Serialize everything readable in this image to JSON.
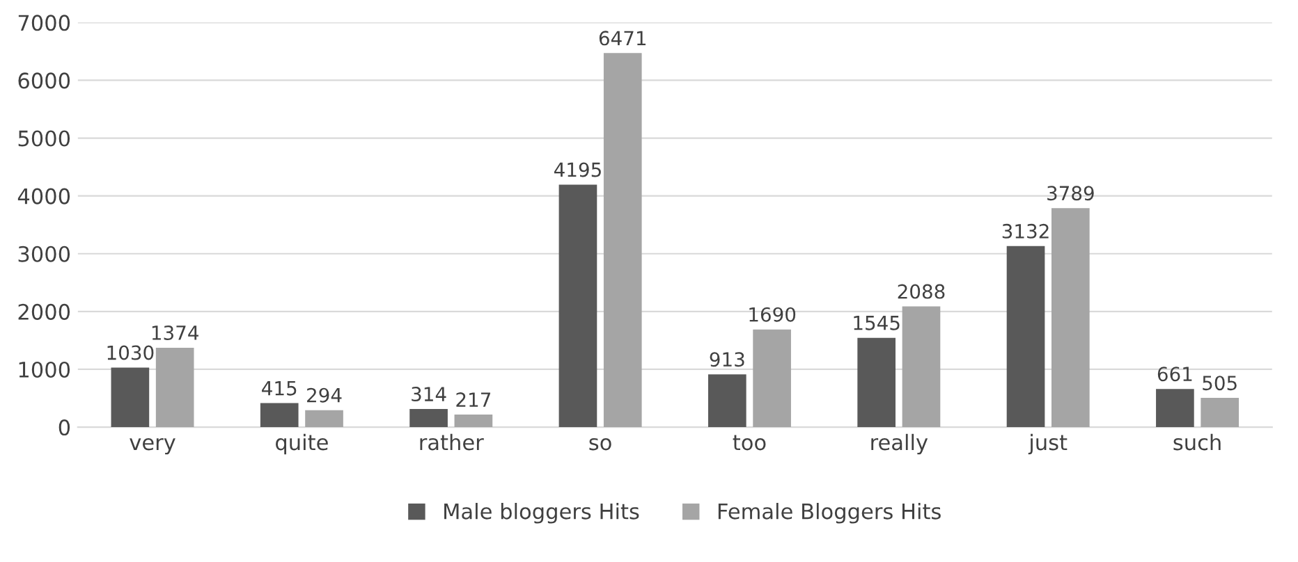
{
  "chart_data": {
    "type": "bar",
    "categories": [
      "very",
      "quite",
      "rather",
      "so",
      "too",
      "really",
      "just",
      "such"
    ],
    "series": [
      {
        "name": "Male bloggers Hits",
        "color": "#595959",
        "values": [
          1030,
          415,
          314,
          4195,
          913,
          1545,
          3132,
          661
        ]
      },
      {
        "name": "Female Bloggers Hits",
        "color": "#a5a5a5",
        "values": [
          1374,
          294,
          217,
          6471,
          1690,
          2088,
          3789,
          505
        ]
      }
    ],
    "ylim": [
      0,
      7000
    ],
    "yticks": [
      0,
      1000,
      2000,
      3000,
      4000,
      5000,
      6000,
      7000
    ],
    "grid": "y",
    "legend": "bottom",
    "data_labels": true
  }
}
